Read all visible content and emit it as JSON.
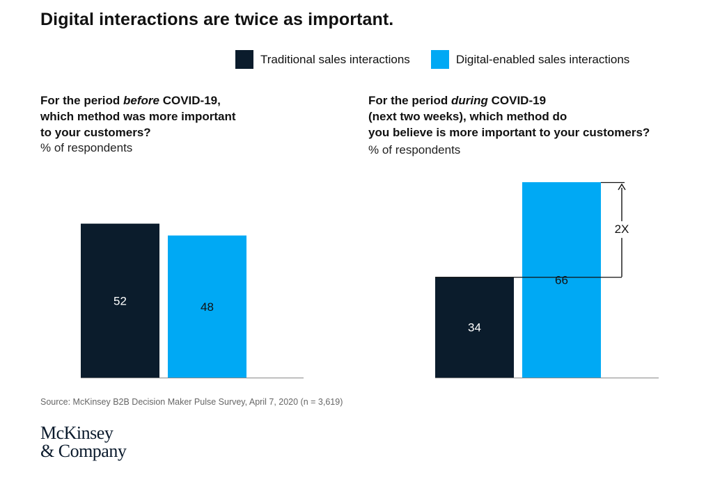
{
  "title": "Digital interactions are twice as important.",
  "legend": [
    {
      "label": "Traditional sales interactions",
      "color": "#0b1c2c"
    },
    {
      "label": "Digital-enabled sales interactions",
      "color": "#00a9f4"
    }
  ],
  "left_panel": {
    "question": {
      "line1_a": "For the period ",
      "line1_em": "before",
      "line1_b": " COVID-19,",
      "line2": "which method was more important",
      "line3": "to your customers?"
    },
    "subtitle": "% of respondents"
  },
  "right_panel": {
    "question": {
      "line1_a": "For the period ",
      "line1_em": "during",
      "line1_b": " COVID-19",
      "line2": "(next two weeks), which method do",
      "line3": "you believe is more important to your customers?"
    },
    "subtitle": "% of respondents",
    "annotation": "2X"
  },
  "chart_data": [
    {
      "type": "bar",
      "title": "For the period before COVID-19, which method was more important to your customers?",
      "ylabel": "% of respondents",
      "categories": [
        "Traditional sales interactions",
        "Digital-enabled sales interactions"
      ],
      "values": [
        52,
        48
      ],
      "colors": [
        "#0b1c2c",
        "#00a9f4"
      ]
    },
    {
      "type": "bar",
      "title": "For the period during COVID-19 (next two weeks), which method do you believe is more important to your customers?",
      "ylabel": "% of respondents",
      "categories": [
        "Traditional sales interactions",
        "Digital-enabled sales interactions"
      ],
      "values": [
        34,
        66
      ],
      "colors": [
        "#0b1c2c",
        "#00a9f4"
      ],
      "annotation": "2X"
    }
  ],
  "source": "Source: McKinsey B2B Decision Maker Pulse Survey, April 7, 2020 (n = 3,619)",
  "logo": {
    "line1": "McKinsey",
    "line2": "& Company"
  }
}
